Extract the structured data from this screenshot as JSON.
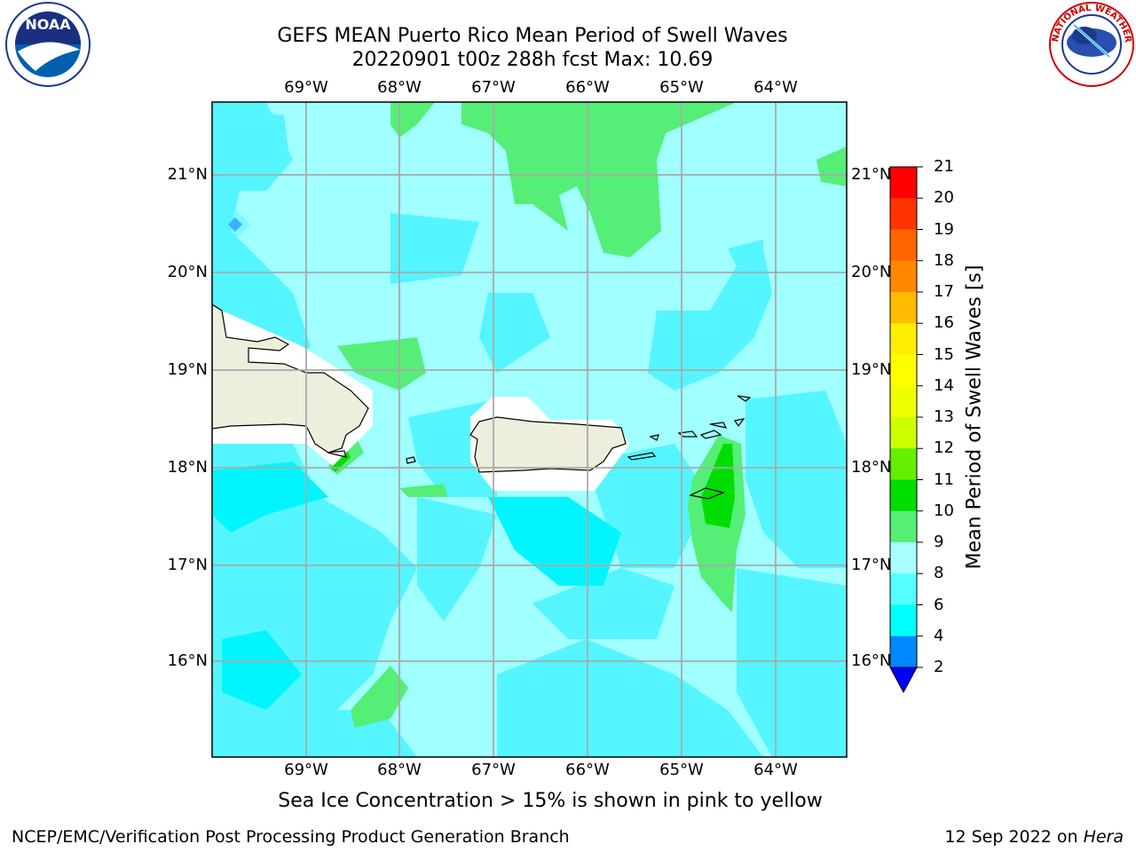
{
  "title": {
    "line1": "GEFS MEAN Puerto Rico Mean Period of Swell Waves",
    "line2": "20220901 t00z 288h fcst   Max: 10.69"
  },
  "lon_labels": [
    "69°W",
    "68°W",
    "67°W",
    "66°W",
    "65°W",
    "64°W"
  ],
  "lat_labels": [
    "21°N",
    "20°N",
    "19°N",
    "18°N",
    "17°N",
    "16°N"
  ],
  "colorbar": {
    "label": "Mean Period of Swell Waves [s]",
    "ticks": [
      "21",
      "20",
      "19",
      "18",
      "17",
      "16",
      "15",
      "14",
      "13",
      "12",
      "11",
      "10",
      "9",
      "8",
      "6",
      "4",
      "2"
    ],
    "colors": [
      "#ff0000",
      "#ff3300",
      "#ff6600",
      "#ff8800",
      "#ffbb00",
      "#ffee00",
      "#ffff00",
      "#eeff00",
      "#ccff00",
      "#66ee00",
      "#00dd00",
      "#55ee77",
      "#aaffff",
      "#55ffff",
      "#00ffff",
      "#0088ff",
      "#0000ff"
    ]
  },
  "note": "Sea Ice Concentration > 15% is shown in pink to yellow",
  "footer": {
    "left": "NCEP/EMC/Verification Post Processing Product Generation Branch",
    "right_date": "12 Sep 2022 on ",
    "right_host": "Hera"
  },
  "logos": {
    "noaa_text": "NOAA",
    "nws_text": "NATIONAL WEATHER SERVICE"
  },
  "field_colors": {
    "light_cyan": "#a0ffff",
    "cyan": "#55f5ff",
    "bright_cyan": "#00f5ff",
    "green": "#55ee77",
    "dark_green": "#00dd00",
    "blue": "#2266ff",
    "land": "#eeeedd",
    "mask": "#ffffff"
  }
}
